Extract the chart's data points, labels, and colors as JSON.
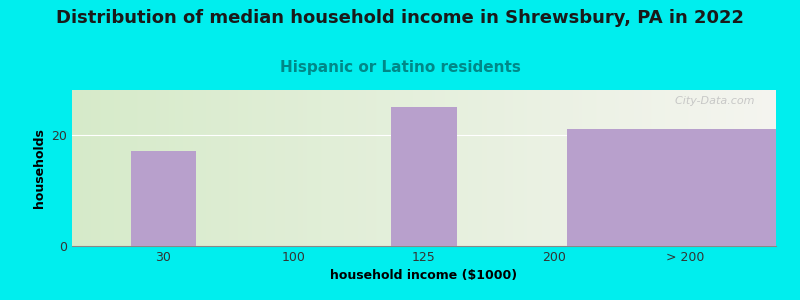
{
  "title": "Distribution of median household income in Shrewsbury, PA in 2022",
  "subtitle": "Hispanic or Latino residents",
  "xlabel": "household income ($1000)",
  "ylabel": "households",
  "categories": [
    "30",
    "100",
    "125",
    "200",
    "> 200"
  ],
  "values": [
    17,
    0,
    25,
    0,
    21
  ],
  "bar_color": "#b8a0cc",
  "background_color": "#00EEEE",
  "plot_bg_left": "#d5ecc8",
  "plot_bg_right": "#f0f0ee",
  "bar_positions": [
    0,
    1,
    2,
    3,
    4
  ],
  "bar_widths": [
    0.5,
    0.5,
    0.5,
    0.5,
    1.8
  ],
  "ylim": [
    0,
    28
  ],
  "yticks": [
    0,
    20
  ],
  "watermark": "  City-Data.com",
  "title_fontsize": 13,
  "subtitle_fontsize": 11,
  "subtitle_color": "#008888",
  "axis_label_fontsize": 9,
  "tick_fontsize": 9
}
